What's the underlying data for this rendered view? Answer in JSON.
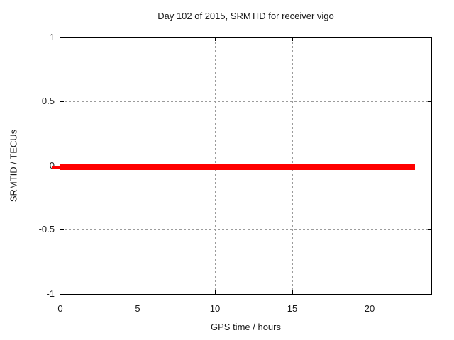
{
  "chart_data": {
    "type": "line",
    "title": "Day 102 of 2015, SRMTID for receiver vigo",
    "xlabel": "GPS time / hours",
    "ylabel": "SRMTID / TECUs",
    "xlim": [
      0,
      24
    ],
    "ylim": [
      -1,
      1
    ],
    "xticks": [
      "0",
      "5",
      "10",
      "15",
      "20"
    ],
    "yticks": [
      "1",
      "0.5",
      "0",
      "-0.5",
      "-1"
    ],
    "grid": true,
    "grid_style": "dashed gray at x=5,10,15,20 and y=-0.5,0,0.5",
    "legend": null,
    "series": [
      {
        "name": "SRMTID",
        "color": "#ff0000",
        "style": "thick solid line",
        "x": [
          0,
          23
        ],
        "y": [
          0,
          0
        ],
        "note": "constant zero value from 0 to ~23 hours"
      }
    ]
  },
  "colors": {
    "background": "#ffffff",
    "axis": "#000000",
    "grid": "#9b9b9b",
    "line": "#ff0000",
    "text": "#1a1a1a"
  }
}
